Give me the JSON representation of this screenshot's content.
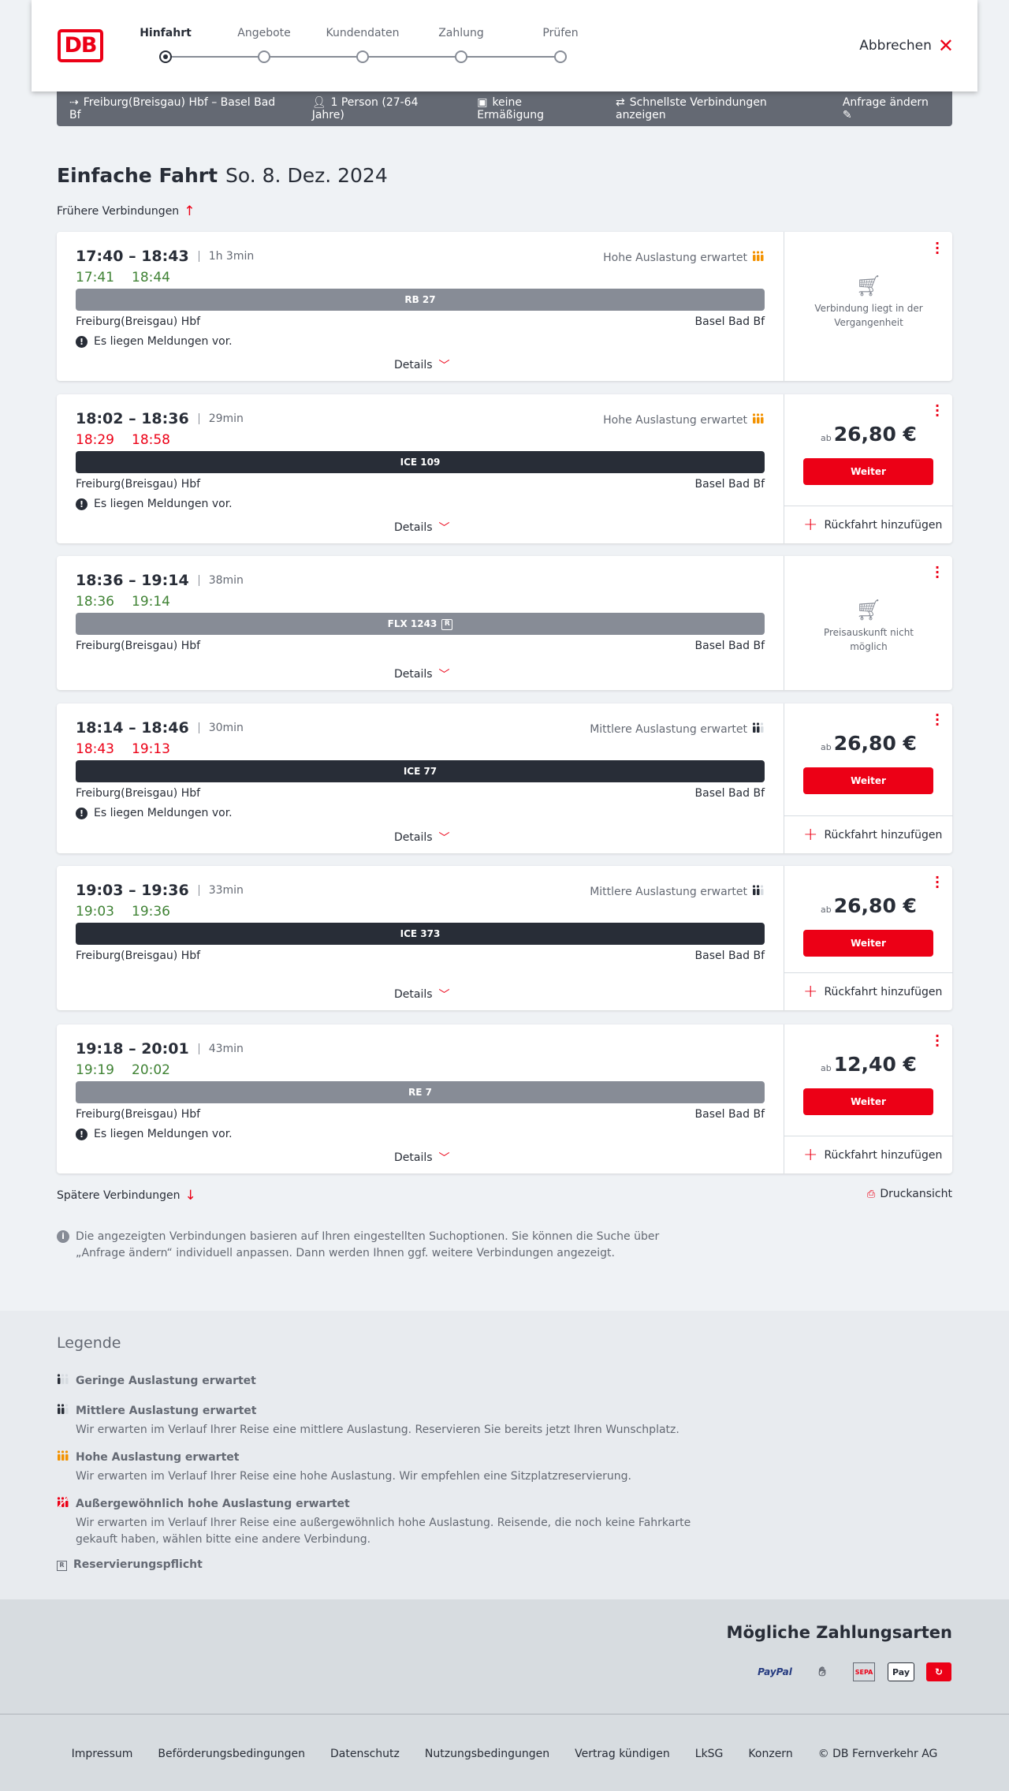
{
  "header": {
    "logo": "DB",
    "steps": [
      "Hinfahrt",
      "Angebote",
      "Kundendaten",
      "Zahlung",
      "Prüfen"
    ],
    "active_step": 0,
    "cancel": "Abbrechen"
  },
  "summary": {
    "route": "Freiburg(Breisgau) Hbf – Basel Bad Bf",
    "persons": "1 Person (27-64 Jahre)",
    "discount": "keine Ermäßigung",
    "fastest": "Schnellste Verbindungen anzeigen",
    "edit": "Anfrage ändern"
  },
  "title": {
    "type": "Einfache Fahrt",
    "date": "So. 8. Dez. 2024"
  },
  "earlier": "Frühere Verbindungen",
  "later": "Spätere Verbindungen",
  "print": "Druckansicht",
  "details_label": "Details",
  "return_label": "Rückfahrt hinzufügen",
  "price_prefix": "ab",
  "weiter_label": "Weiter",
  "colors": {
    "accent": "#ec0016",
    "ontime": "#408335",
    "high_occupancy": "#f39200"
  },
  "connections": [
    {
      "time": "17:40 – 18:43",
      "duration": "1h 3min",
      "rt_dep": "17:41",
      "rt_arr": "18:44",
      "rt_status": "green",
      "occupancy": "Hohe Auslastung erwartet",
      "occ_level": "high",
      "train": "RB 27",
      "bar": "grey",
      "from": "Freiburg(Breisgau) Hbf",
      "to": "Basel Bad Bf",
      "message": "Es liegen Meldungen vor.",
      "unavailable": "Verbindung liegt in der Vergangenheit"
    },
    {
      "time": "18:02 – 18:36",
      "duration": "29min",
      "rt_dep": "18:29",
      "rt_arr": "18:58",
      "rt_status": "red",
      "occupancy": "Hohe Auslastung erwartet",
      "occ_level": "high",
      "train": "ICE 109",
      "bar": "dark",
      "from": "Freiburg(Breisgau) Hbf",
      "to": "Basel Bad Bf",
      "message": "Es liegen Meldungen vor.",
      "price": "26,80 €"
    },
    {
      "time": "18:36 – 19:14",
      "duration": "38min",
      "rt_dep": "18:36",
      "rt_arr": "19:14",
      "rt_status": "green",
      "train": "FLX 1243",
      "reservation": "R",
      "bar": "grey",
      "from": "Freiburg(Breisgau) Hbf",
      "to": "Basel Bad Bf",
      "unavailable": "Preisauskunft nicht möglich"
    },
    {
      "time": "18:14 – 18:46",
      "duration": "30min",
      "rt_dep": "18:43",
      "rt_arr": "19:13",
      "rt_status": "red",
      "occupancy": "Mittlere Auslastung erwartet",
      "occ_level": "medium",
      "train": "ICE 77",
      "bar": "dark",
      "from": "Freiburg(Breisgau) Hbf",
      "to": "Basel Bad Bf",
      "message": "Es liegen Meldungen vor.",
      "price": "26,80 €"
    },
    {
      "time": "19:03 – 19:36",
      "duration": "33min",
      "rt_dep": "19:03",
      "rt_arr": "19:36",
      "rt_status": "green",
      "occupancy": "Mittlere Auslastung erwartet",
      "occ_level": "medium",
      "train": "ICE 373",
      "bar": "dark",
      "from": "Freiburg(Breisgau) Hbf",
      "to": "Basel Bad Bf",
      "price": "26,80 €"
    },
    {
      "time": "19:18 – 20:01",
      "duration": "43min",
      "rt_dep": "19:19",
      "rt_arr": "20:02",
      "rt_status": "green",
      "train": "RE 7",
      "bar": "grey",
      "from": "Freiburg(Breisgau) Hbf",
      "to": "Basel Bad Bf",
      "message": "Es liegen Meldungen vor.",
      "price": "12,40 €"
    }
  ],
  "info": "Die angezeigten Verbindungen basieren auf Ihren eingestellten Suchoptionen. Sie können die Suche über „Anfrage ändern“ individuell anpassen. Dann werden Ihnen ggf. weitere Verbindungen angezeigt.",
  "legend": {
    "title": "Legende",
    "items": [
      {
        "title": "Geringe Auslastung erwartet",
        "level": "low"
      },
      {
        "title": "Mittlere Auslastung erwartet",
        "level": "medium",
        "desc": "Wir erwarten im Verlauf Ihrer Reise eine mittlere Auslastung. Reservieren Sie bereits jetzt Ihren Wunschplatz."
      },
      {
        "title": "Hohe Auslastung erwartet",
        "level": "high",
        "desc": "Wir erwarten im Verlauf Ihrer Reise eine hohe Auslastung. Wir empfehlen eine Sitzplatzreservierung."
      },
      {
        "title": "Außergewöhnlich hohe Auslastung erwartet",
        "level": "extreme",
        "desc": "Wir erwarten im Verlauf Ihrer Reise eine außergewöhnlich hohe Auslastung. Reisende, die noch keine Fahrkarte gekauft haben, wählen bitte eine andere Verbindung."
      },
      {
        "title": "Reservierungspflicht",
        "level": "reservation"
      }
    ]
  },
  "payment": {
    "title": "Mögliche Zahlungsarten",
    "methods": [
      {
        "label": "PayPal",
        "icon": "paypal-icon"
      },
      {
        "label": "",
        "icon": "credit-card-icon"
      },
      {
        "label": "SEPA",
        "icon": "sepa-icon"
      },
      {
        "label": "Pay",
        "icon": "apple-pay-icon"
      },
      {
        "label": "",
        "icon": "bahnbonus-icon"
      }
    ]
  },
  "footer": {
    "links": [
      "Impressum",
      "Beförderungsbedingungen",
      "Datenschutz",
      "Nutzungsbedingungen",
      "Vertrag kündigen",
      "LkSG",
      "Konzern",
      "© DB Fernverkehr AG"
    ]
  }
}
